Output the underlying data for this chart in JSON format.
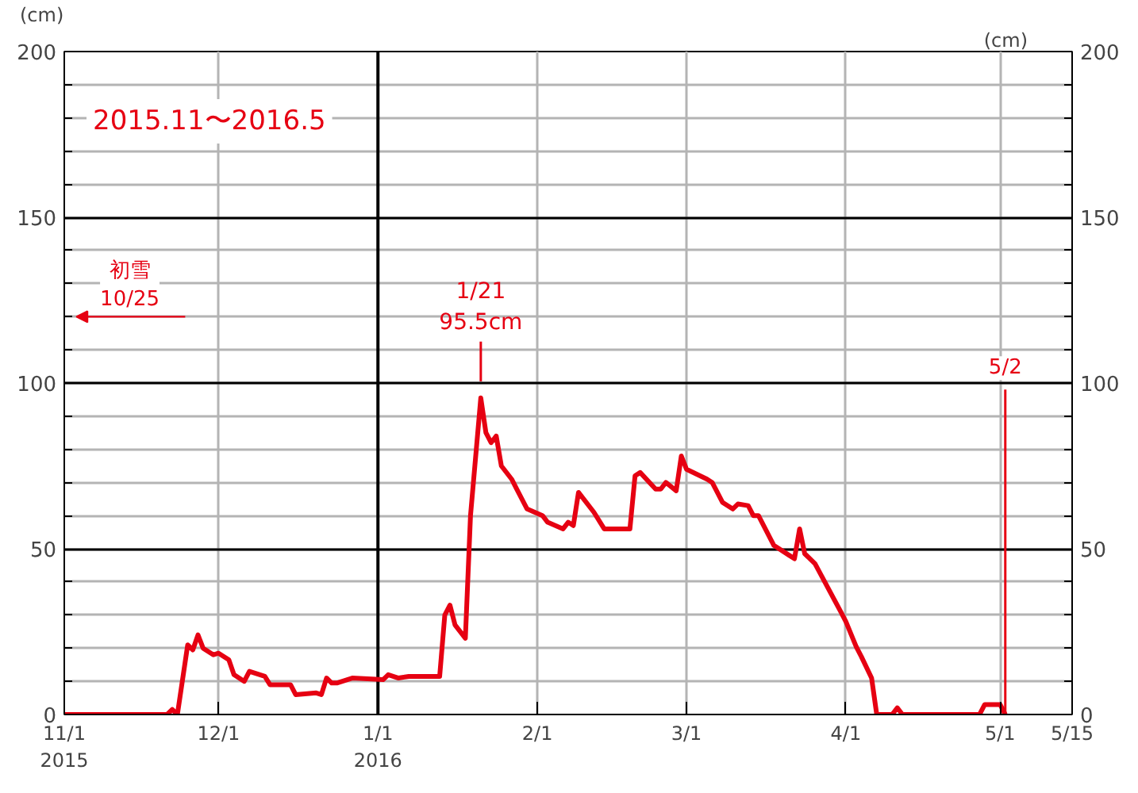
{
  "chart_data": {
    "type": "line",
    "x": [
      "2015-11-01",
      "2015-11-21",
      "2015-11-22",
      "2015-11-23",
      "2015-11-25",
      "2015-11-26",
      "2015-11-27",
      "2015-11-28",
      "2015-11-30",
      "2015-12-01",
      "2015-12-03",
      "2015-12-04",
      "2015-12-06",
      "2015-12-07",
      "2015-12-10",
      "2015-12-11",
      "2015-12-15",
      "2015-12-16",
      "2015-12-20",
      "2015-12-21",
      "2015-12-22",
      "2015-12-23",
      "2015-12-24",
      "2015-12-27",
      "2016-01-02",
      "2016-01-03",
      "2016-01-05",
      "2016-01-07",
      "2016-01-13",
      "2016-01-14",
      "2016-01-15",
      "2016-01-16",
      "2016-01-18",
      "2016-01-19",
      "2016-01-21",
      "2016-01-22",
      "2016-01-23",
      "2016-01-24",
      "2016-01-25",
      "2016-01-27",
      "2016-01-28",
      "2016-01-30",
      "2016-02-02",
      "2016-02-03",
      "2016-02-06",
      "2016-02-07",
      "2016-02-08",
      "2016-02-09",
      "2016-02-12",
      "2016-02-14",
      "2016-02-19",
      "2016-02-20",
      "2016-02-21",
      "2016-02-24",
      "2016-02-25",
      "2016-02-26",
      "2016-02-28",
      "2016-02-29",
      "2016-03-01",
      "2016-03-05",
      "2016-03-06",
      "2016-03-08",
      "2016-03-10",
      "2016-03-11",
      "2016-03-13",
      "2016-03-14",
      "2016-03-15",
      "2016-03-18",
      "2016-03-21",
      "2016-03-22",
      "2016-03-23",
      "2016-03-24",
      "2016-03-26",
      "2016-03-31",
      "2016-04-01",
      "2016-04-03",
      "2016-04-04",
      "2016-04-06",
      "2016-04-07",
      "2016-04-10",
      "2016-04-11",
      "2016-04-12",
      "2016-04-27",
      "2016-04-28",
      "2016-04-29",
      "2016-05-01",
      "2016-05-02"
    ],
    "series": [
      {
        "color": "#e60012",
        "values": [
          0,
          0,
          1.5,
          0,
          21,
          19.5,
          24,
          20,
          18,
          18.5,
          16.5,
          12,
          10,
          13,
          11.5,
          9,
          9,
          6,
          6.5,
          6,
          11,
          9.5,
          9.5,
          11,
          10.5,
          12,
          11,
          11.5,
          11.5,
          30,
          33,
          27,
          23,
          60,
          95.5,
          85,
          82,
          84,
          75,
          71,
          68,
          62,
          60,
          58,
          56,
          58,
          57,
          67,
          61,
          56,
          56,
          72,
          73,
          68,
          68,
          70,
          67.5,
          78,
          74,
          71,
          70,
          64,
          62,
          63.5,
          63,
          60,
          60,
          51,
          48,
          47,
          56,
          48.5,
          45.5,
          31,
          28,
          20.5,
          17.5,
          11,
          0,
          0,
          2,
          0,
          0,
          3,
          3,
          3,
          0
        ]
      }
    ],
    "ylabel": "(cm)",
    "y2label": "(cm)",
    "xlim": [
      "2015-11-01",
      "2016-05-15"
    ],
    "xticks": [
      {
        "value": "2015-11-01",
        "label": "11/1\n2015"
      },
      {
        "value": "2015-12-01",
        "label": "12/1"
      },
      {
        "value": "2016-01-01",
        "label": "1/1\n2016"
      },
      {
        "value": "2016-02-01",
        "label": "2/1"
      },
      {
        "value": "2016-03-01",
        "label": "3/1"
      },
      {
        "value": "2016-04-01",
        "label": "4/1"
      },
      {
        "value": "2016-05-01",
        "label": "5/1"
      },
      {
        "value": "2016-05-15",
        "label": "5/15"
      }
    ],
    "ylim": [
      0,
      200
    ],
    "yticks": [
      0,
      {
        "value": 10,
        "label": null
      },
      {
        "value": 20,
        "label": null
      },
      {
        "value": 30,
        "label": null
      },
      {
        "value": 40,
        "label": null
      },
      50,
      {
        "value": 60,
        "label": null
      },
      {
        "value": 70,
        "label": null
      },
      {
        "value": 80,
        "label": null
      },
      {
        "value": 90,
        "label": null
      },
      100,
      {
        "value": 110,
        "label": null
      },
      {
        "value": 120,
        "label": null
      },
      {
        "value": 130,
        "label": null
      },
      {
        "value": 140,
        "label": null
      },
      150,
      {
        "value": 160,
        "label": null
      },
      {
        "value": 170,
        "label": null
      },
      {
        "value": 180,
        "label": null
      },
      {
        "value": 190,
        "label": null
      },
      200
    ],
    "y2lim": [
      0,
      200
    ],
    "y2ticks": [
      0,
      {
        "value": 10,
        "label": null
      },
      {
        "value": 20,
        "label": null
      },
      {
        "value": 30,
        "label": null
      },
      {
        "value": 40,
        "label": null
      },
      50,
      {
        "value": 60,
        "label": null
      },
      {
        "value": 70,
        "label": null
      },
      {
        "value": 80,
        "label": null
      },
      {
        "value": 90,
        "label": null
      },
      100,
      {
        "value": 110,
        "label": null
      },
      {
        "value": 120,
        "label": null
      },
      {
        "value": 130,
        "label": null
      },
      {
        "value": 140,
        "label": null
      },
      150,
      {
        "value": 160,
        "label": null
      },
      {
        "value": 170,
        "label": null
      },
      {
        "value": 180,
        "label": null
      },
      {
        "value": 190,
        "label": null
      },
      200
    ],
    "grid": true,
    "ref_lines": [
      {
        "axis": "x",
        "value": "2016-01-01",
        "label": null,
        "color": "#000000"
      },
      {
        "axis": "x",
        "value": "2016-05-02",
        "label": "5/2",
        "color": "#e60012"
      }
    ],
    "annotations": [
      "2015.11〜2016.5",
      "初雪\n10/25",
      {
        "text": "1/21\n95.5cm",
        "x": "2016-01-21",
        "y": 95.5
      }
    ],
    "line_style": "solid"
  }
}
